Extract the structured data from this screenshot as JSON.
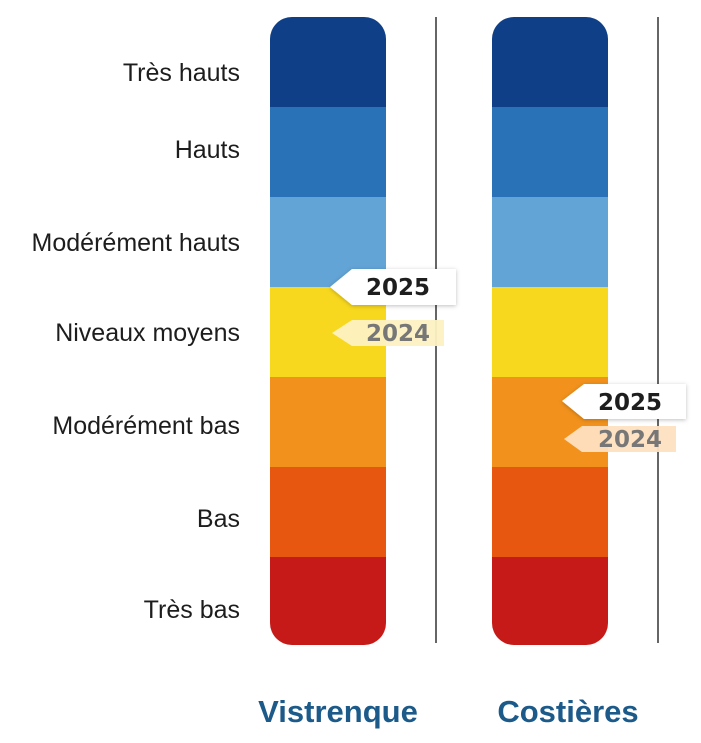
{
  "chart_data": {
    "type": "categorical-level-bar",
    "levels": [
      "Très hauts",
      "Hauts",
      "Modérément hauts",
      "Niveaux moyens",
      "Modérément bas",
      "Bas",
      "Très bas"
    ],
    "level_colors": [
      "#0f3f86",
      "#2a72b8",
      "#62a4d6",
      "#f8d81e",
      "#f2921c",
      "#e8570f",
      "#c51a17"
    ],
    "aquifers": [
      {
        "name": "Vistrenque",
        "current": {
          "label": "2025",
          "level": "Niveaux moyens"
        },
        "previous": {
          "label": "2024",
          "level": "Niveaux moyens"
        }
      },
      {
        "name": "Costières",
        "current": {
          "label": "2025",
          "level": "Modérément bas"
        },
        "previous": {
          "label": "2024",
          "level": "Modérément bas"
        }
      }
    ],
    "title": "",
    "xlabel": "",
    "ylabel": ""
  }
}
